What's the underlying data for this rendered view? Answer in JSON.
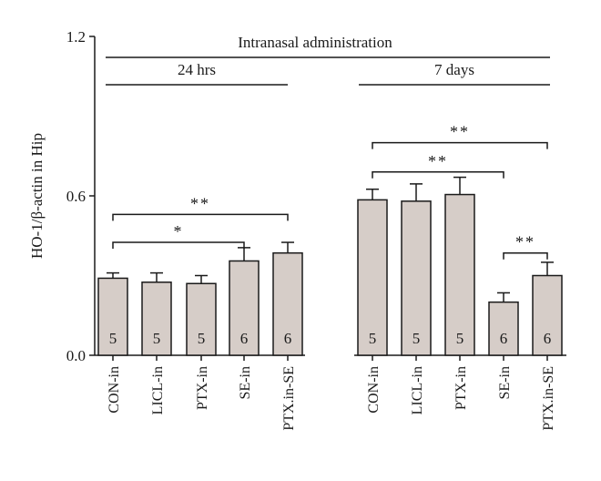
{
  "chart_data": {
    "type": "bar",
    "title": "Intranasal administration",
    "ylabel": "HO-1/β-actin in Hip",
    "ylim": [
      0,
      1.2
    ],
    "yticks": [
      0.0,
      0.6,
      1.2
    ],
    "ytick_labels": [
      "0.0",
      "0.6",
      "1.2"
    ],
    "groups": [
      {
        "label": "24 hrs",
        "categories": [
          "CON-in",
          "LICL-in",
          "PTX-in",
          "SE-in",
          "PTX.in-SE"
        ],
        "values": [
          0.29,
          0.275,
          0.27,
          0.355,
          0.385
        ],
        "errors": [
          0.02,
          0.035,
          0.03,
          0.05,
          0.04
        ],
        "n": [
          "5",
          "5",
          "5",
          "6",
          "6"
        ],
        "significance": [
          {
            "from": 0,
            "to": 3,
            "label": "*"
          },
          {
            "from": 0,
            "to": 4,
            "label": "**"
          }
        ]
      },
      {
        "label": "7 days",
        "categories": [
          "CON-in",
          "LICL-in",
          "PTX-in",
          "SE-in",
          "PTX.in-SE"
        ],
        "values": [
          0.585,
          0.58,
          0.605,
          0.2,
          0.3
        ],
        "errors": [
          0.04,
          0.065,
          0.065,
          0.035,
          0.05
        ],
        "n": [
          "5",
          "5",
          "5",
          "6",
          "6"
        ],
        "significance": [
          {
            "from": 0,
            "to": 3,
            "label": "**"
          },
          {
            "from": 0,
            "to": 4,
            "label": "**"
          },
          {
            "from": 3,
            "to": 4,
            "label": "**"
          }
        ]
      }
    ],
    "colors": {
      "bar_fill": "#d6cdc8",
      "stroke": "#1a1a1a"
    }
  }
}
